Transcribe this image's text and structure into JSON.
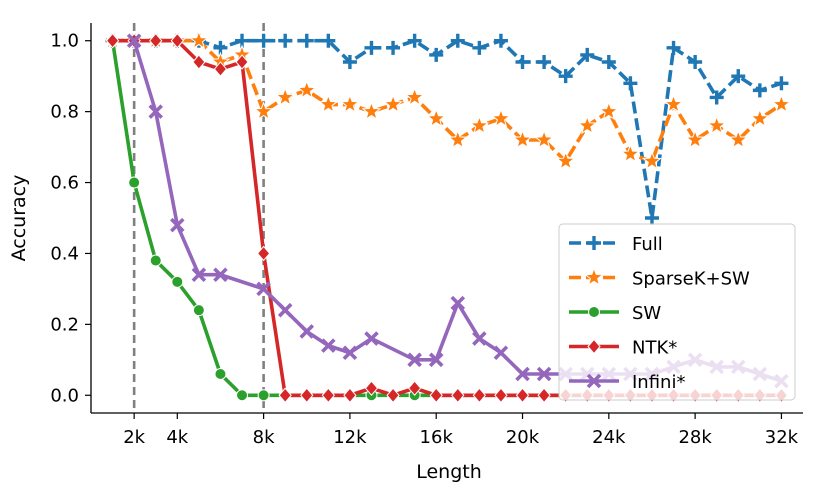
{
  "chart_data": {
    "type": "line",
    "xlabel": "Length",
    "ylabel": "Accuracy",
    "xlim": [
      0,
      33000
    ],
    "ylim": [
      -0.05,
      1.05
    ],
    "x_ticks": [
      {
        "value": 2000,
        "label": "2k"
      },
      {
        "value": 4000,
        "label": "4k"
      },
      {
        "value": 8000,
        "label": "8k"
      },
      {
        "value": 12000,
        "label": "12k"
      },
      {
        "value": 16000,
        "label": "16k"
      },
      {
        "value": 20000,
        "label": "20k"
      },
      {
        "value": 24000,
        "label": "24k"
      },
      {
        "value": 28000,
        "label": "28k"
      },
      {
        "value": 32000,
        "label": "32k"
      }
    ],
    "y_ticks": [
      {
        "value": 0.0,
        "label": "0.0"
      },
      {
        "value": 0.2,
        "label": "0.2"
      },
      {
        "value": 0.4,
        "label": "0.4"
      },
      {
        "value": 0.6,
        "label": "0.6"
      },
      {
        "value": 0.8,
        "label": "0.8"
      },
      {
        "value": 1.0,
        "label": "1.0"
      }
    ],
    "vlines": [
      2000,
      8000
    ],
    "legend_position": "bottom-right",
    "series": [
      {
        "name": "Full",
        "color": "#1f77b4",
        "marker": "plus",
        "x": [
          1000,
          2000,
          3000,
          4000,
          5000,
          6000,
          7000,
          8000,
          9000,
          10000,
          11000,
          12000,
          13000,
          14000,
          15000,
          16000,
          17000,
          18000,
          19000,
          20000,
          21000,
          22000,
          23000,
          24000,
          25000,
          26000,
          27000,
          28000,
          29000,
          30000,
          31000,
          32000
        ],
        "y": [
          1.0,
          1.0,
          1.0,
          1.0,
          1.0,
          0.98,
          1.0,
          1.0,
          1.0,
          1.0,
          1.0,
          0.94,
          0.98,
          0.98,
          1.0,
          0.96,
          1.0,
          0.98,
          1.0,
          0.94,
          0.94,
          0.9,
          0.96,
          0.94,
          0.88,
          0.5,
          0.98,
          0.94,
          0.84,
          0.9,
          0.86,
          0.88
        ]
      },
      {
        "name": "SparseK+SW",
        "color": "#ff7f0e",
        "marker": "star",
        "x": [
          1000,
          2000,
          3000,
          4000,
          5000,
          6000,
          7000,
          8000,
          9000,
          10000,
          11000,
          12000,
          13000,
          14000,
          15000,
          16000,
          17000,
          18000,
          19000,
          20000,
          21000,
          22000,
          23000,
          24000,
          25000,
          26000,
          27000,
          28000,
          29000,
          30000,
          31000,
          32000
        ],
        "y": [
          1.0,
          1.0,
          1.0,
          1.0,
          1.0,
          0.94,
          0.96,
          0.8,
          0.84,
          0.86,
          0.82,
          0.82,
          0.8,
          0.82,
          0.84,
          0.78,
          0.72,
          0.76,
          0.78,
          0.72,
          0.72,
          0.66,
          0.76,
          0.8,
          0.68,
          0.66,
          0.82,
          0.72,
          0.76,
          0.72,
          0.78,
          0.82
        ]
      },
      {
        "name": "SW",
        "color": "#2ca02c",
        "marker": "circle",
        "x": [
          1000,
          2000,
          3000,
          4000,
          5000,
          6000,
          7000,
          8000,
          9000,
          10000,
          11000,
          12000,
          13000,
          14000,
          15000,
          16000,
          17000,
          18000,
          19000,
          20000,
          21000,
          22000,
          23000,
          24000,
          25000,
          26000,
          27000,
          28000,
          29000,
          30000,
          31000,
          32000
        ],
        "y": [
          1.0,
          0.6,
          0.38,
          0.32,
          0.24,
          0.06,
          0.0,
          0.0,
          0.0,
          0.0,
          0.0,
          0.0,
          0.0,
          0.0,
          0.0,
          0.0,
          0.0,
          0.0,
          0.0,
          0.0,
          0.0,
          0.0,
          0.0,
          0.0,
          0.0,
          0.0,
          0.0,
          0.0,
          0.0,
          0.0,
          0.0,
          0.0
        ]
      },
      {
        "name": "NTK*",
        "color": "#d62728",
        "marker": "diamond",
        "x": [
          1000,
          2000,
          3000,
          4000,
          5000,
          6000,
          7000,
          8000,
          9000,
          10000,
          11000,
          12000,
          13000,
          14000,
          15000,
          16000,
          17000,
          18000,
          19000,
          20000,
          21000,
          22000,
          23000,
          24000,
          25000,
          26000,
          27000,
          28000,
          29000,
          30000,
          31000,
          32000
        ],
        "y": [
          1.0,
          1.0,
          1.0,
          1.0,
          0.94,
          0.92,
          0.94,
          0.4,
          0.0,
          0.0,
          0.0,
          0.0,
          0.02,
          0.0,
          0.02,
          0.0,
          0.0,
          0.0,
          0.0,
          0.0,
          0.0,
          0.0,
          0.0,
          0.0,
          0.0,
          0.0,
          0.0,
          0.0,
          0.0,
          0.0,
          0.0,
          0.0
        ]
      },
      {
        "name": "Infini*",
        "color": "#9467bd",
        "marker": "x",
        "x": [
          2000,
          3000,
          4000,
          5000,
          6000,
          8000,
          9000,
          10000,
          11000,
          12000,
          13000,
          15000,
          16000,
          17000,
          18000,
          19000,
          20000,
          21000,
          22000,
          23000,
          24000,
          25000,
          26000,
          27000,
          28000,
          29000,
          30000,
          31000,
          32000
        ],
        "y": [
          1.0,
          0.8,
          0.48,
          0.34,
          0.34,
          0.3,
          0.24,
          0.18,
          0.14,
          0.12,
          0.16,
          0.1,
          0.1,
          0.26,
          0.16,
          0.12,
          0.06,
          0.06,
          0.06,
          0.06,
          0.06,
          0.06,
          0.06,
          0.08,
          0.1,
          0.08,
          0.08,
          0.06,
          0.04
        ]
      }
    ]
  }
}
